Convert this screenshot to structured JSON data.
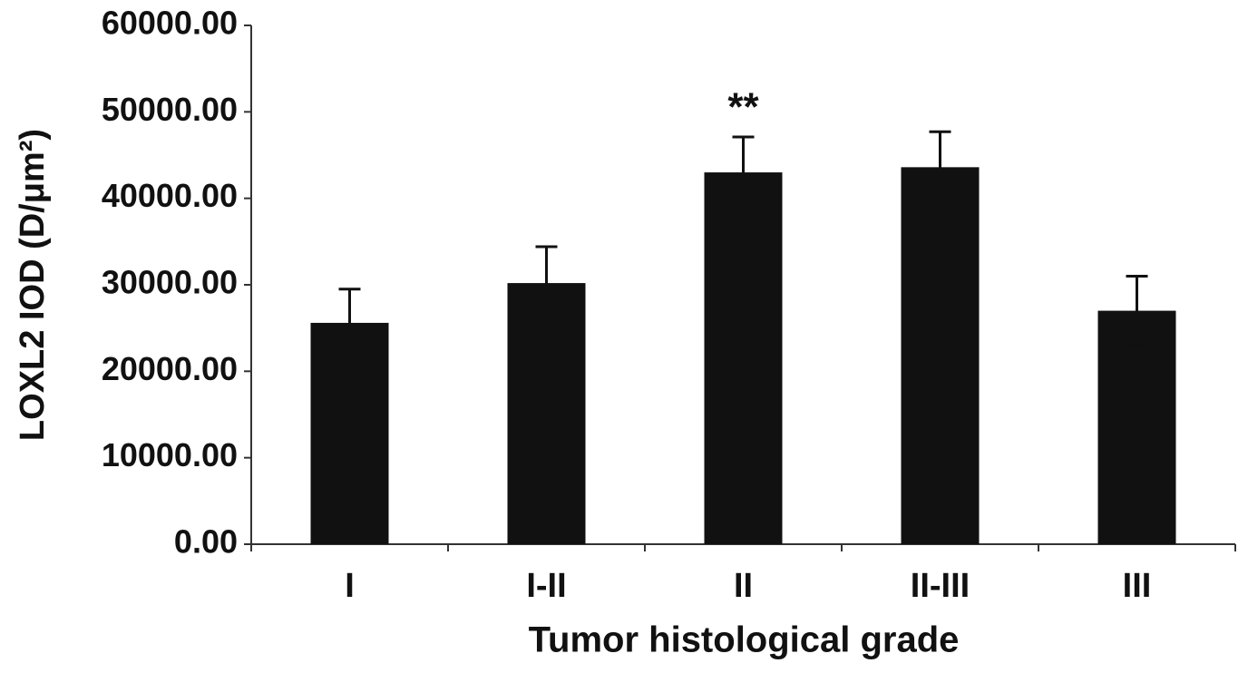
{
  "chart_data": {
    "type": "bar",
    "x_label": "Tumor histological grade",
    "y_label": "LOXL2 IOD (D/μm²)",
    "categories": [
      "I",
      "I-II",
      "II",
      "II-III",
      "III"
    ],
    "values": [
      25600,
      30200,
      43000,
      43600,
      27000
    ],
    "errors": [
      3900,
      4200,
      4100,
      4100,
      4000
    ],
    "color": "#111111",
    "ylim": [
      0,
      60000
    ],
    "yticks": [
      {
        "value": 0,
        "label": "0.00"
      },
      {
        "value": 10000,
        "label": "10000.00"
      },
      {
        "value": 20000,
        "label": "20000.00"
      },
      {
        "value": 30000,
        "label": "30000.00"
      },
      {
        "value": 40000,
        "label": "40000.00"
      },
      {
        "value": 50000,
        "label": "50000.00"
      },
      {
        "value": 60000,
        "label": "60000.00"
      }
    ],
    "grid": false,
    "annotations": [
      {
        "text": "**",
        "category": "II"
      }
    ]
  }
}
